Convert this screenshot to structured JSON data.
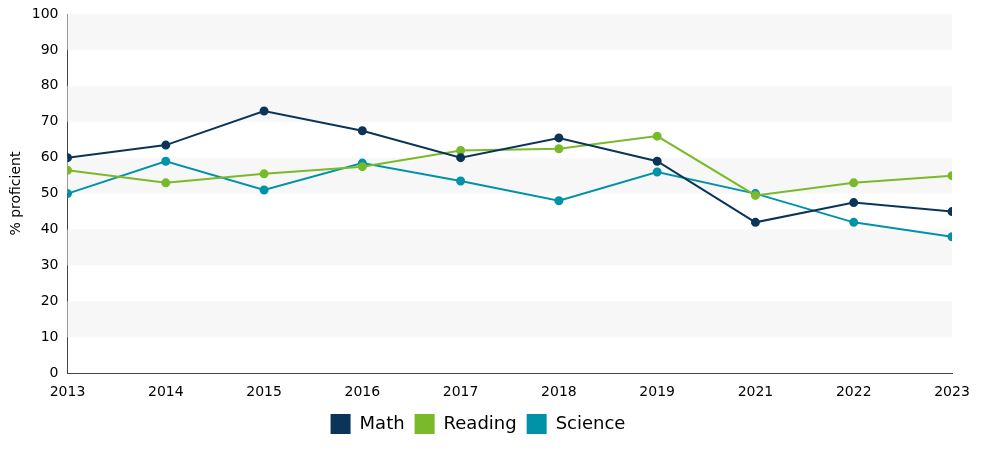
{
  "chart_data": {
    "type": "line",
    "y_label": "% proficient",
    "categories": [
      "2013",
      "2014",
      "2015",
      "2016",
      "2017",
      "2018",
      "2019",
      "2021",
      "2022",
      "2023"
    ],
    "series": [
      {
        "name": "Math",
        "color": "#0b3558",
        "values": [
          60,
          63.5,
          73,
          67.5,
          60,
          65.5,
          59,
          42,
          47.5,
          45
        ]
      },
      {
        "name": "Reading",
        "color": "#7ab929",
        "values": [
          56.5,
          53,
          55.5,
          57.5,
          62,
          62.5,
          66,
          49.5,
          53,
          55
        ]
      },
      {
        "name": "Science",
        "color": "#0093a8",
        "values": [
          50,
          59,
          51,
          58.5,
          53.5,
          48,
          56,
          50,
          42,
          38
        ]
      }
    ],
    "ylim": [
      0,
      100
    ],
    "yticks": [
      0,
      10,
      20,
      30,
      40,
      50,
      60,
      70,
      80,
      90,
      100
    ],
    "grid": true,
    "legend": "bottom",
    "marker": "circle"
  }
}
